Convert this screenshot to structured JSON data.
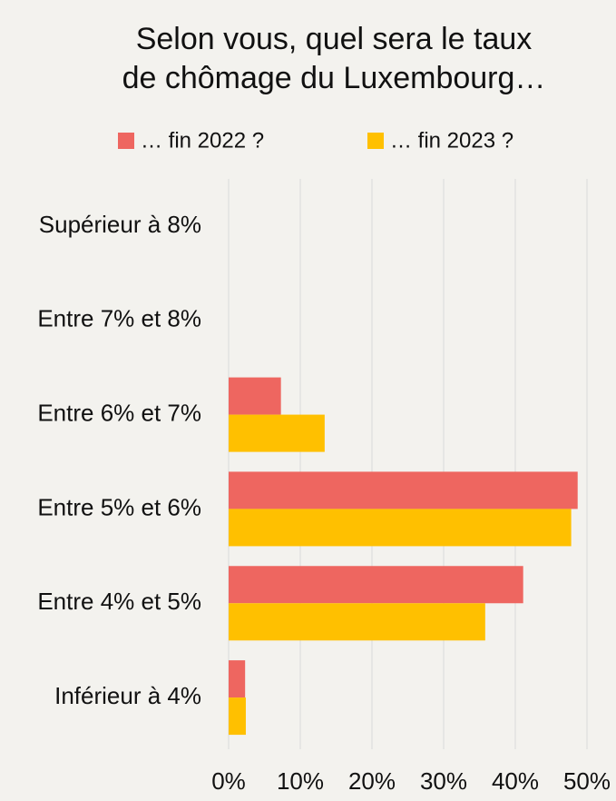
{
  "chart_data": {
    "type": "barh",
    "title": [
      "Selon vous, quel sera le taux",
      "de chômage du Luxembourg…"
    ],
    "categories": [
      "Supérieur à 8%",
      "Entre 7% et 8%",
      "Entre 6% et 7%",
      "Entre 5% et 6%",
      "Entre 4% et 5%",
      "Inférieur à 4%"
    ],
    "series": [
      {
        "name": "… fin 2022 ?",
        "color": "#ee6660",
        "values": [
          0,
          0,
          7.3,
          48.7,
          41.1,
          2.3
        ]
      },
      {
        "name": "… fin 2023 ?",
        "color": "#ffc000",
        "values": [
          0,
          0,
          13.4,
          47.8,
          35.8,
          2.4
        ]
      }
    ],
    "xlim": [
      0,
      50
    ],
    "xticks": [
      {
        "value": 0,
        "label": "0%"
      },
      {
        "value": 10,
        "label": "10%"
      },
      {
        "value": 20,
        "label": "20%"
      },
      {
        "value": 30,
        "label": "30%"
      },
      {
        "value": 40,
        "label": "40%"
      },
      {
        "value": 50,
        "label": "50%"
      }
    ],
    "grid": true,
    "legend": "top"
  }
}
